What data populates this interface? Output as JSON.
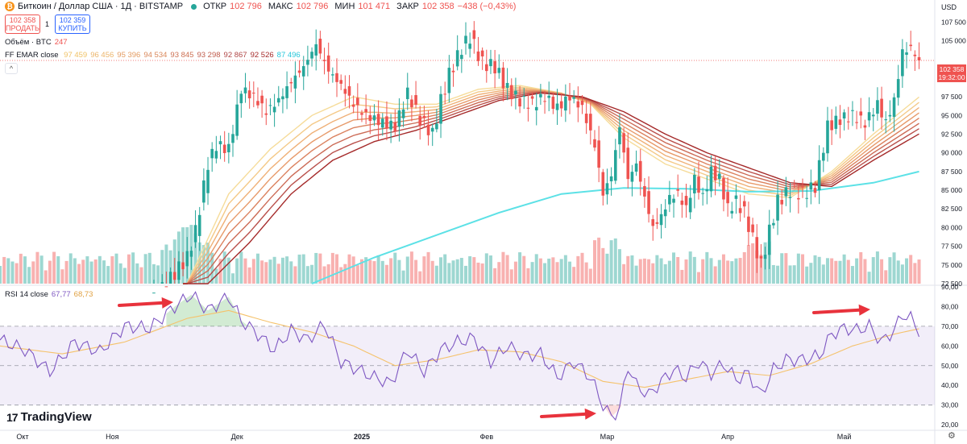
{
  "header": {
    "symbol_title": "Биткоин / Доллар США · 1Д · BITSTAMP",
    "open_label": "ОТКР",
    "open": "102 796",
    "high_label": "МАКС",
    "high": "102 796",
    "low_label": "МИН",
    "low": "101 471",
    "close_label": "ЗАКР",
    "close": "102 358",
    "change": "−438 (−0,43%)"
  },
  "trade": {
    "sell_price": "102 358",
    "sell_label": "ПРОДАТЬ",
    "spread": "1",
    "buy_price": "102 359",
    "buy_label": "КУПИТЬ"
  },
  "volume_label": {
    "name": "Объём · BTC",
    "value": "247"
  },
  "ema_label": {
    "name": "FF EMAR close",
    "values": [
      "97 459",
      "96 456",
      "95 396",
      "94 534",
      "93 845",
      "93 298",
      "92 867",
      "92 526",
      "87 496"
    ]
  },
  "rsi_label": {
    "name": "RSI 14 close",
    "value": "67,77",
    "ma": "68,73"
  },
  "currency": "USD",
  "last_price": {
    "value": "102 358",
    "timer": "19:32:00"
  },
  "brand": "TradingView",
  "colors": {
    "up": "#26a69a",
    "down": "#ef5350",
    "ema_light": "#f6d58a",
    "ema_dark": "#a52a2a",
    "ma200": "#5ce1e6",
    "rsi": "#7e57c2",
    "rsi_ma": "#f5c26b",
    "arrow": "#e8323c"
  },
  "chart_data": [
    {
      "type": "candlestick",
      "title": "Биткоин / Доллар США · 1Д · BITSTAMP",
      "ylabel": "USD",
      "x_ticks": [
        "Окт",
        "Ноя",
        "Дек",
        "2025",
        "Фев",
        "Мар",
        "Апр",
        "Май"
      ],
      "y_ticks": [
        "107 500",
        "105 000",
        "102 358",
        "100 000",
        "97 500",
        "95 000",
        "92 500",
        "90 000",
        "87 500",
        "85 000",
        "82 500",
        "80 000",
        "77 500",
        "75 000",
        "72 500"
      ],
      "ylim": [
        72500,
        108500
      ],
      "close_path": [
        {
          "x": 0,
          "y": 62500
        },
        {
          "x": 10,
          "y": 63500
        },
        {
          "x": 20,
          "y": 62000
        },
        {
          "x": 30,
          "y": 67500
        },
        {
          "x": 35,
          "y": 69000
        },
        {
          "x": 40,
          "y": 72500
        },
        {
          "x": 45,
          "y": 76000
        },
        {
          "x": 47,
          "y": 79500
        },
        {
          "x": 50,
          "y": 88500
        },
        {
          "x": 52,
          "y": 91000
        },
        {
          "x": 55,
          "y": 90500
        },
        {
          "x": 58,
          "y": 98500
        },
        {
          "x": 61,
          "y": 97500
        },
        {
          "x": 64,
          "y": 95500
        },
        {
          "x": 67,
          "y": 97000
        },
        {
          "x": 70,
          "y": 99500
        },
        {
          "x": 73,
          "y": 101500
        },
        {
          "x": 76,
          "y": 104500
        },
        {
          "x": 79,
          "y": 101000
        },
        {
          "x": 82,
          "y": 99000
        },
        {
          "x": 85,
          "y": 96500
        },
        {
          "x": 88,
          "y": 95000
        },
        {
          "x": 92,
          "y": 94000
        },
        {
          "x": 95,
          "y": 93500
        },
        {
          "x": 98,
          "y": 98000
        },
        {
          "x": 101,
          "y": 94500
        },
        {
          "x": 104,
          "y": 92500
        },
        {
          "x": 106,
          "y": 97000
        },
        {
          "x": 108,
          "y": 100500
        },
        {
          "x": 111,
          "y": 104000
        },
        {
          "x": 113,
          "y": 105500
        },
        {
          "x": 116,
          "y": 102000
        },
        {
          "x": 119,
          "y": 101500
        },
        {
          "x": 122,
          "y": 98500
        },
        {
          "x": 125,
          "y": 97000
        },
        {
          "x": 128,
          "y": 96500
        },
        {
          "x": 131,
          "y": 97500
        },
        {
          "x": 134,
          "y": 96000
        },
        {
          "x": 137,
          "y": 97500
        },
        {
          "x": 140,
          "y": 96000
        },
        {
          "x": 143,
          "y": 91000
        },
        {
          "x": 145,
          "y": 84500
        },
        {
          "x": 147,
          "y": 87000
        },
        {
          "x": 149,
          "y": 93500
        },
        {
          "x": 151,
          "y": 86500
        },
        {
          "x": 153,
          "y": 88500
        },
        {
          "x": 155,
          "y": 84000
        },
        {
          "x": 157,
          "y": 80000
        },
        {
          "x": 159,
          "y": 81500
        },
        {
          "x": 161,
          "y": 84000
        },
        {
          "x": 163,
          "y": 84500
        },
        {
          "x": 165,
          "y": 82500
        },
        {
          "x": 167,
          "y": 86500
        },
        {
          "x": 169,
          "y": 84000
        },
        {
          "x": 171,
          "y": 87500
        },
        {
          "x": 173,
          "y": 86500
        },
        {
          "x": 175,
          "y": 82500
        },
        {
          "x": 177,
          "y": 83500
        },
        {
          "x": 179,
          "y": 82000
        },
        {
          "x": 181,
          "y": 78500
        },
        {
          "x": 183,
          "y": 75000
        },
        {
          "x": 185,
          "y": 79500
        },
        {
          "x": 187,
          "y": 83500
        },
        {
          "x": 190,
          "y": 85000
        },
        {
          "x": 193,
          "y": 84500
        },
        {
          "x": 196,
          "y": 85500
        },
        {
          "x": 199,
          "y": 93500
        },
        {
          "x": 202,
          "y": 94500
        },
        {
          "x": 205,
          "y": 95000
        },
        {
          "x": 208,
          "y": 94000
        },
        {
          "x": 211,
          "y": 96500
        },
        {
          "x": 213,
          "y": 94000
        },
        {
          "x": 215,
          "y": 97000
        },
        {
          "x": 217,
          "y": 103500
        },
        {
          "x": 219,
          "y": 104000
        },
        {
          "x": 221,
          "y": 102358
        }
      ],
      "ema_ribbon_top": [
        {
          "x": 45,
          "y": 72500
        },
        {
          "x": 55,
          "y": 84500
        },
        {
          "x": 65,
          "y": 90500
        },
        {
          "x": 75,
          "y": 95000
        },
        {
          "x": 85,
          "y": 97500
        },
        {
          "x": 95,
          "y": 96500
        },
        {
          "x": 105,
          "y": 96500
        },
        {
          "x": 115,
          "y": 98500
        },
        {
          "x": 125,
          "y": 99000
        },
        {
          "x": 135,
          "y": 98000
        },
        {
          "x": 142,
          "y": 96500
        },
        {
          "x": 150,
          "y": 92000
        },
        {
          "x": 160,
          "y": 88500
        },
        {
          "x": 170,
          "y": 86500
        },
        {
          "x": 180,
          "y": 84500
        },
        {
          "x": 190,
          "y": 84000
        },
        {
          "x": 200,
          "y": 87500
        },
        {
          "x": 210,
          "y": 92500
        },
        {
          "x": 221,
          "y": 97459
        }
      ],
      "ema_ribbon_bottom": [
        {
          "x": 50,
          "y": 72500
        },
        {
          "x": 60,
          "y": 78000
        },
        {
          "x": 70,
          "y": 84500
        },
        {
          "x": 80,
          "y": 89000
        },
        {
          "x": 90,
          "y": 91500
        },
        {
          "x": 100,
          "y": 93000
        },
        {
          "x": 110,
          "y": 95000
        },
        {
          "x": 120,
          "y": 97000
        },
        {
          "x": 130,
          "y": 98000
        },
        {
          "x": 140,
          "y": 97500
        },
        {
          "x": 150,
          "y": 95500
        },
        {
          "x": 160,
          "y": 92500
        },
        {
          "x": 170,
          "y": 90000
        },
        {
          "x": 180,
          "y": 88000
        },
        {
          "x": 190,
          "y": 86000
        },
        {
          "x": 200,
          "y": 85500
        },
        {
          "x": 210,
          "y": 89000
        },
        {
          "x": 221,
          "y": 92526
        }
      ],
      "ma200_line": [
        {
          "x": 75,
          "y": 72500
        },
        {
          "x": 90,
          "y": 76000
        },
        {
          "x": 105,
          "y": 79000
        },
        {
          "x": 120,
          "y": 82000
        },
        {
          "x": 135,
          "y": 84500
        },
        {
          "x": 150,
          "y": 85300
        },
        {
          "x": 165,
          "y": 85200
        },
        {
          "x": 180,
          "y": 84800
        },
        {
          "x": 195,
          "y": 84900
        },
        {
          "x": 210,
          "y": 86000
        },
        {
          "x": 221,
          "y": 87496
        }
      ],
      "xlim": [
        0,
        224
      ]
    },
    {
      "type": "line",
      "title": "RSI 14 close",
      "y_ticks": [
        "90,00",
        "80,00",
        "70,00",
        "60,00",
        "50,00",
        "40,00",
        "30,00",
        "20,00"
      ],
      "ylim": [
        18,
        90
      ],
      "bands": [
        30,
        50,
        70
      ],
      "series": [
        {
          "values": [
            {
              "x": 0,
              "y": 63
            },
            {
              "x": 6,
              "y": 58
            },
            {
              "x": 12,
              "y": 47
            },
            {
              "x": 18,
              "y": 62
            },
            {
              "x": 24,
              "y": 57
            },
            {
              "x": 30,
              "y": 70
            },
            {
              "x": 36,
              "y": 69
            },
            {
              "x": 42,
              "y": 80
            },
            {
              "x": 46,
              "y": 86
            },
            {
              "x": 50,
              "y": 78
            },
            {
              "x": 55,
              "y": 85
            },
            {
              "x": 58,
              "y": 73
            },
            {
              "x": 62,
              "y": 66
            },
            {
              "x": 66,
              "y": 58
            },
            {
              "x": 70,
              "y": 68
            },
            {
              "x": 74,
              "y": 63
            },
            {
              "x": 78,
              "y": 71
            },
            {
              "x": 82,
              "y": 52
            },
            {
              "x": 86,
              "y": 48
            },
            {
              "x": 90,
              "y": 44
            },
            {
              "x": 94,
              "y": 41
            },
            {
              "x": 98,
              "y": 58
            },
            {
              "x": 102,
              "y": 47
            },
            {
              "x": 106,
              "y": 58
            },
            {
              "x": 110,
              "y": 62
            },
            {
              "x": 114,
              "y": 64
            },
            {
              "x": 118,
              "y": 52
            },
            {
              "x": 122,
              "y": 60
            },
            {
              "x": 126,
              "y": 55
            },
            {
              "x": 130,
              "y": 56
            },
            {
              "x": 134,
              "y": 44
            },
            {
              "x": 138,
              "y": 52
            },
            {
              "x": 142,
              "y": 44
            },
            {
              "x": 145,
              "y": 30
            },
            {
              "x": 147,
              "y": 24
            },
            {
              "x": 149,
              "y": 28
            },
            {
              "x": 151,
              "y": 50
            },
            {
              "x": 153,
              "y": 40
            },
            {
              "x": 156,
              "y": 35
            },
            {
              "x": 159,
              "y": 42
            },
            {
              "x": 162,
              "y": 48
            },
            {
              "x": 165,
              "y": 44
            },
            {
              "x": 168,
              "y": 52
            },
            {
              "x": 171,
              "y": 46
            },
            {
              "x": 174,
              "y": 51
            },
            {
              "x": 177,
              "y": 43
            },
            {
              "x": 180,
              "y": 46
            },
            {
              "x": 183,
              "y": 35
            },
            {
              "x": 186,
              "y": 48
            },
            {
              "x": 189,
              "y": 53
            },
            {
              "x": 193,
              "y": 53
            },
            {
              "x": 197,
              "y": 55
            },
            {
              "x": 200,
              "y": 66
            },
            {
              "x": 203,
              "y": 69
            },
            {
              "x": 206,
              "y": 68
            },
            {
              "x": 209,
              "y": 70
            },
            {
              "x": 212,
              "y": 62
            },
            {
              "x": 215,
              "y": 68
            },
            {
              "x": 217,
              "y": 76
            },
            {
              "x": 219,
              "y": 74
            },
            {
              "x": 221,
              "y": 67.77
            }
          ]
        },
        {
          "values": [
            {
              "x": 0,
              "y": 60
            },
            {
              "x": 15,
              "y": 56
            },
            {
              "x": 30,
              "y": 62
            },
            {
              "x": 45,
              "y": 74
            },
            {
              "x": 55,
              "y": 78
            },
            {
              "x": 65,
              "y": 72
            },
            {
              "x": 75,
              "y": 67
            },
            {
              "x": 85,
              "y": 60
            },
            {
              "x": 95,
              "y": 50
            },
            {
              "x": 105,
              "y": 53
            },
            {
              "x": 115,
              "y": 58
            },
            {
              "x": 125,
              "y": 57
            },
            {
              "x": 135,
              "y": 52
            },
            {
              "x": 145,
              "y": 42
            },
            {
              "x": 155,
              "y": 39
            },
            {
              "x": 165,
              "y": 43
            },
            {
              "x": 175,
              "y": 47
            },
            {
              "x": 185,
              "y": 45
            },
            {
              "x": 195,
              "y": 51
            },
            {
              "x": 205,
              "y": 60
            },
            {
              "x": 215,
              "y": 66
            },
            {
              "x": 221,
              "y": 68.73
            }
          ]
        }
      ],
      "xlim": [
        0,
        224
      ]
    }
  ]
}
